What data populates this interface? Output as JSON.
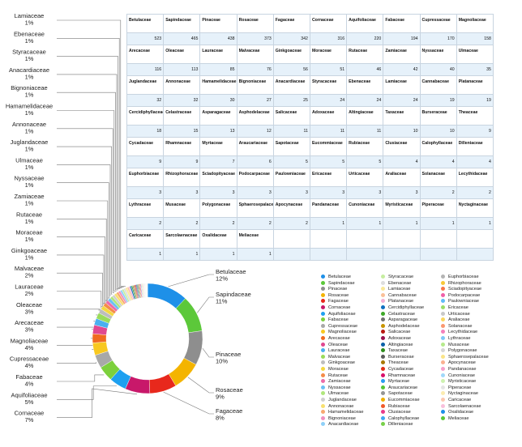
{
  "chart_data": {
    "type": "pie",
    "donut": true,
    "legend_position": "right",
    "categories": [
      "Betulaceae",
      "Sapindaceae",
      "Pinaceae",
      "Rosaceae",
      "Fagaceae",
      "Cornaceae",
      "Aquifoliaceae",
      "Fabaceae",
      "Cupressaceae",
      "Magnoliaceae",
      "Arecaceae",
      "Oleaceae",
      "Lauraceae",
      "Malvaceae",
      "Ginkgoaceae",
      "Moraceae",
      "Rutaceae",
      "Zamiaceae",
      "Nyssaceae",
      "Ulmaceae",
      "Juglandaceae",
      "Annonaceae",
      "Hamamelidaceae",
      "Bignoniaceae",
      "Anacardiaceae",
      "Styracaceae",
      "Ebenaceae",
      "Lamiaceae",
      "Cannabaceae",
      "Platanaceae",
      "Cercidiphyllaceae",
      "Celastraceae",
      "Asparagaceae",
      "Asphodelaceae",
      "Salicaceae",
      "Adoxaceae",
      "Altingiaceae",
      "Taxaceae",
      "Burseraceae",
      "Theaceae",
      "Cycadaceae",
      "Rhamnaceae",
      "Myrtaceae",
      "Araucariaceae",
      "Sapotaceae",
      "Eucommiaceae",
      "Rubiaceae",
      "Clusiaceae",
      "Calophyllaceae",
      "Dilleniaceae",
      "Euphorbiaceae",
      "Rhizophoraceae",
      "Sciadopityaceae",
      "Podocarpaceae",
      "Paulowniaceae",
      "Ericaceae",
      "Urticaceae",
      "Araliaceae",
      "Solanaceae",
      "Lecythidaceae",
      "Lythraceae",
      "Musaceae",
      "Polygonaceae",
      "Sphaerosepalaceae",
      "Apocynaceae",
      "Pandanaceae",
      "Cunoniaceae",
      "Myristicaceae",
      "Piperaceae",
      "Nyctaginaceae",
      "Caricaceae",
      "Sarcolaenaceae",
      "Oxalidaceae",
      "Meliaceae"
    ],
    "table_names": [
      "Betulaceae",
      "Sapindaceae",
      "Pinaceae",
      "Rosaceae",
      "Fagaceae",
      "Cornaceae",
      "Aquifoliaceae",
      "Fabaceae",
      "Cupressaceae",
      "Magnoliaceae",
      "Arecaceae",
      "Oleaceae",
      "Lauraceae",
      "Malvaceae",
      "Ginkgoaceae",
      "Moraceae",
      "Rutaceae",
      "Zamiaceae",
      "Nyssaceae",
      "Ulmaceae",
      "Juglandaceae",
      "Annonaceae",
      "Hamamelidaceae",
      "Bignoniaceae",
      "Anacardiaceae",
      "Styracaceae",
      "Ebenaceae",
      "Lamiaceae",
      "Cannabaceae",
      "Platanaceae",
      "Cercidiphyllaceae",
      "Celastraceae",
      "Asparagaceae",
      "Asphodelaceae",
      "Salicaceae",
      "Adoxaceae",
      "Altingiaceae",
      "Taxaceae",
      "Burseraceae",
      "Theaceae",
      "Cycadaceae",
      "Rhamnaceae",
      "Myrtaceae",
      "Araucariaceae",
      "Sapotaceae",
      "Eucommiaceae",
      "Rubiaceae",
      "Clusiaceae",
      "Calophyllaceae",
      "Dilleniaceae",
      "Euphorbiaceae",
      "Rhizophoraceae",
      "Sciadopityaceae",
      "Podocarpaceae",
      "Paulowniaceae",
      "Ericaceae",
      "Urticaceae",
      "Araliaceae",
      "Solanaceae",
      "Lecythidaceae",
      "Lythraceae",
      "Musaceae",
      "Polygonaceae",
      "Sphaerosepalaceae",
      "Apocynaceae",
      "Pandanaceae",
      "Cunoniaceae",
      "Myristicaceae",
      "Piperaceae",
      "Nyctaginaceae",
      "Caricaceae",
      "Sarcolaenaceae",
      "Oxalidaceae",
      "Meliaceae"
    ],
    "values": [
      523,
      465,
      438,
      373,
      342,
      316,
      220,
      194,
      170,
      158,
      116,
      113,
      85,
      76,
      56,
      51,
      46,
      42,
      40,
      35,
      32,
      32,
      30,
      27,
      25,
      24,
      24,
      24,
      19,
      19,
      18,
      15,
      13,
      12,
      11,
      11,
      11,
      10,
      10,
      9,
      9,
      9,
      7,
      6,
      5,
      5,
      5,
      4,
      4,
      4,
      3,
      3,
      3,
      3,
      3,
      3,
      3,
      3,
      2,
      2,
      2,
      2,
      2,
      2,
      2,
      1,
      1,
      1,
      1,
      1,
      1,
      1,
      1,
      1
    ],
    "value_labels": [
      "523",
      "465",
      "438",
      "373",
      "342",
      "316",
      "220",
      "194",
      "170",
      "158",
      "116",
      "113",
      "85",
      "76",
      "56",
      "51",
      "46",
      "42",
      "40",
      "35",
      "32",
      "32",
      "30",
      "27",
      "25",
      "24",
      "24",
      "24",
      "19",
      "19",
      "18",
      "15",
      "13",
      "12",
      "11",
      "11",
      "11",
      "10",
      "10",
      "9",
      "9",
      "9",
      "7",
      "6",
      "5",
      "5",
      "5",
      "4",
      "4",
      "4",
      "3",
      "3",
      "3",
      "3",
      "3",
      "3",
      "3",
      "3",
      "2",
      "2",
      "2",
      "2",
      "2",
      "2",
      "2",
      "1",
      "1",
      "1",
      "1",
      "1",
      "1",
      "1",
      "1",
      "1"
    ],
    "colors": [
      "#1e90e8",
      "#5cc83a",
      "#8e8e8e",
      "#f4b400",
      "#e8281c",
      "#c8186a",
      "#1ea0f0",
      "#7cd03c",
      "#a8a8a8",
      "#f8c820",
      "#f06a20",
      "#e04890",
      "#4ab0f0",
      "#9adc5a",
      "#bdbdbd",
      "#f4d840",
      "#f48c48",
      "#ec6ca8",
      "#6cc0f4",
      "#b0e67c",
      "#cfcfcf",
      "#f8e070",
      "#f8a870",
      "#f090c0",
      "#8ed0f8",
      "#c6eea0",
      "#dddddd",
      "#fae898",
      "#fac098",
      "#f4b0d4",
      "#0e70c0",
      "#3ea828",
      "#707070",
      "#c89400",
      "#b81810",
      "#98104e",
      "#0a60a8",
      "#2e8c1c",
      "#5c5c5c",
      "#a87800",
      "#e03018",
      "#d8106a",
      "#2a9cf0",
      "#56c436",
      "#949494",
      "#f0b000",
      "#f05a2a",
      "#e83a8a",
      "#40a8f4",
      "#78d04a",
      "#b4b4b4",
      "#f8c838",
      "#f8784a",
      "#f060a8",
      "#60bcf8",
      "#9ade6a",
      "#c8c8c8",
      "#fad860",
      "#fa9870",
      "#f480bc",
      "#80c8f8",
      "#b6ea8c",
      "#d6d6d6",
      "#fae488",
      "#fab090",
      "#f6a0cc",
      "#a0d8fa",
      "#cef2b0",
      "#e4e4e4",
      "#fcecb0",
      "#fcc8b0",
      "#f8c0dc",
      "#1e90e8",
      "#5cc83a"
    ],
    "left_labels": [
      {
        "name": "Lamiaceae",
        "pct": "1%"
      },
      {
        "name": "Ebenaceae",
        "pct": "1%"
      },
      {
        "name": "Styracaceae",
        "pct": "1%"
      },
      {
        "name": "Anacardiaceae",
        "pct": "1%"
      },
      {
        "name": "Bignoniaceae",
        "pct": "1%"
      },
      {
        "name": "Hamamelidaceae",
        "pct": "1%"
      },
      {
        "name": "Annonaceae",
        "pct": "1%"
      },
      {
        "name": "Juglandaceae",
        "pct": "1%"
      },
      {
        "name": "Ulmaceae",
        "pct": "1%"
      },
      {
        "name": "Nyssaceae",
        "pct": "1%"
      },
      {
        "name": "Zamiaceae",
        "pct": "1%"
      },
      {
        "name": "Rutaceae",
        "pct": "1%"
      },
      {
        "name": "Moraceae",
        "pct": "1%"
      },
      {
        "name": "Ginkgoaceae",
        "pct": "1%"
      },
      {
        "name": "Malvaceae",
        "pct": "2%"
      },
      {
        "name": "Lauraceae",
        "pct": "2%"
      },
      {
        "name": "Oleaceae",
        "pct": "3%"
      },
      {
        "name": "Arecaceae",
        "pct": "3%"
      },
      {
        "name": "Magnoliaceae",
        "pct": "4%"
      },
      {
        "name": "Cupressaceae",
        "pct": "4%"
      },
      {
        "name": "Fabaceae",
        "pct": "4%"
      },
      {
        "name": "Aquifoliaceae",
        "pct": "5%"
      },
      {
        "name": "Cornaceae",
        "pct": "7%"
      }
    ],
    "right_labels": [
      {
        "name": "Betulaceae",
        "pct": "12%"
      },
      {
        "name": "Sapindaceae",
        "pct": "11%"
      },
      {
        "name": "Pinaceae",
        "pct": "10%"
      },
      {
        "name": "Rosaceae",
        "pct": "9%"
      },
      {
        "name": "Fagaceae",
        "pct": "8%"
      }
    ]
  }
}
